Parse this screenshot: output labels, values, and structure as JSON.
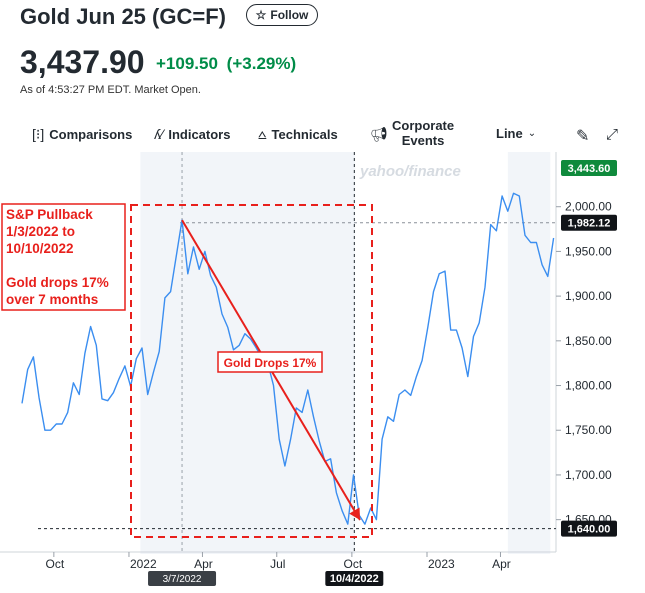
{
  "header": {
    "title": "Gold Jun 25 (GC=F)",
    "follow_label": "Follow",
    "price": "3,437.90",
    "change": "+109.50",
    "change_pct": "(+3.29%)",
    "as_of": "As of 4:53:27 PM EDT. Market Open."
  },
  "toolbar": {
    "comparisons": "Comparisons",
    "indicators": "Indicators",
    "technicals": "Technicals",
    "corporate_line1": "Corporate",
    "corporate_line2": "Events",
    "line": "Line"
  },
  "colors": {
    "line": "#3b8ef0",
    "positive": "#008c48",
    "annotation": "#e8201c",
    "current_badge": "#0f8a3c"
  },
  "annotations": {
    "box_line1": "S&P Pullback",
    "box_line2": "1/3/2022 to",
    "box_line3": "10/10/2022",
    "box_line4": "Gold drops 17%",
    "box_line5": "over 7 months",
    "arrow_label": "Gold Drops 17%",
    "watermark": "yahoo/finance"
  },
  "chart_data": {
    "type": "line",
    "ylim": [
      1625,
      2050
    ],
    "y_ticks": [
      "2,000.00",
      "1,950.00",
      "1,900.00",
      "1,850.00",
      "1,800.00",
      "1,750.00",
      "1,700.00",
      "1,650.00"
    ],
    "y_tick_values": [
      2000,
      1950,
      1900,
      1850,
      1800,
      1750,
      1700,
      1650
    ],
    "x_tick_labels": [
      "Oct",
      "2022",
      "Apr",
      "Jul",
      "Oct",
      "2023",
      "Apr"
    ],
    "x_tick_dates": [
      "2021-10-01",
      "2022-01-01",
      "2022-04-01",
      "2022-07-01",
      "2022-10-01",
      "2023-01-01",
      "2023-04-01"
    ],
    "date_range": [
      "2021-08-23",
      "2023-06-08"
    ],
    "crosshair_dates": [
      "2022-03-07",
      "2022-10-04"
    ],
    "crosshair_labels": [
      "3/7/2022",
      "10/4/2022"
    ],
    "price_markers": [
      {
        "label": "3,443.60",
        "value": 2050,
        "style": "current"
      },
      {
        "label": "1,982.12",
        "value": 1982.12,
        "style": "dark"
      },
      {
        "label": "1,640.00",
        "value": 1640,
        "style": "dark"
      }
    ],
    "series": [
      {
        "x": [
          "2021-08-23",
          "2021-08-30",
          "2021-09-06",
          "2021-09-13",
          "2021-09-20",
          "2021-09-27",
          "2021-10-04",
          "2021-10-11",
          "2021-10-18",
          "2021-10-25",
          "2021-11-01",
          "2021-11-08",
          "2021-11-15",
          "2021-11-22",
          "2021-11-29",
          "2021-12-06",
          "2021-12-13",
          "2021-12-20",
          "2021-12-27",
          "2022-01-03",
          "2022-01-10",
          "2022-01-17",
          "2022-01-24",
          "2022-01-31",
          "2022-02-07",
          "2022-02-14",
          "2022-02-21",
          "2022-02-28",
          "2022-03-07",
          "2022-03-14",
          "2022-03-21",
          "2022-03-28",
          "2022-04-04",
          "2022-04-11",
          "2022-04-18",
          "2022-04-25",
          "2022-05-02",
          "2022-05-09",
          "2022-05-16",
          "2022-05-23",
          "2022-05-30",
          "2022-06-06",
          "2022-06-13",
          "2022-06-20",
          "2022-06-27",
          "2022-07-04",
          "2022-07-11",
          "2022-07-18",
          "2022-07-25",
          "2022-08-01",
          "2022-08-08",
          "2022-08-15",
          "2022-08-22",
          "2022-08-29",
          "2022-09-05",
          "2022-09-12",
          "2022-09-19",
          "2022-09-26",
          "2022-10-03",
          "2022-10-10",
          "2022-10-17",
          "2022-10-24",
          "2022-10-31",
          "2022-11-07",
          "2022-11-14",
          "2022-11-21",
          "2022-11-28",
          "2022-12-05",
          "2022-12-12",
          "2022-12-19",
          "2022-12-26",
          "2023-01-02",
          "2023-01-09",
          "2023-01-16",
          "2023-01-23",
          "2023-01-30",
          "2023-02-06",
          "2023-02-13",
          "2023-02-20",
          "2023-02-27",
          "2023-03-06",
          "2023-03-13",
          "2023-03-20",
          "2023-03-27",
          "2023-04-03",
          "2023-04-10",
          "2023-04-17",
          "2023-04-24",
          "2023-05-01",
          "2023-05-08",
          "2023-05-15",
          "2023-05-22",
          "2023-05-29",
          "2023-06-05"
        ],
        "y": [
          1780,
          1818,
          1832,
          1786,
          1750,
          1750,
          1757,
          1757,
          1770,
          1803,
          1790,
          1836,
          1866,
          1845,
          1785,
          1783,
          1792,
          1808,
          1822,
          1799,
          1830,
          1842,
          1790,
          1815,
          1838,
          1898,
          1905,
          1945,
          1985,
          1925,
          1955,
          1930,
          1950,
          1923,
          1910,
          1880,
          1865,
          1840,
          1845,
          1858,
          1852,
          1842,
          1830,
          1825,
          1800,
          1740,
          1710,
          1740,
          1775,
          1770,
          1795,
          1765,
          1738,
          1715,
          1718,
          1680,
          1660,
          1645,
          1700,
          1655,
          1645,
          1663,
          1650,
          1740,
          1765,
          1760,
          1790,
          1795,
          1789,
          1810,
          1828,
          1865,
          1905,
          1925,
          1928,
          1862,
          1862,
          1842,
          1810,
          1855,
          1870,
          1910,
          1980,
          1973,
          2012,
          1995,
          2015,
          2012,
          1968,
          1960,
          1960,
          1935,
          1922,
          1965
        ]
      }
    ]
  }
}
